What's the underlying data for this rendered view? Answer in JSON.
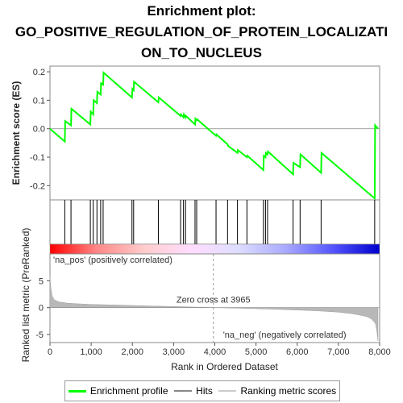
{
  "title_lines": [
    "Enrichment plot:",
    "GO_POSITIVE_REGULATION_OF_PROTEIN_LOCALIZATI",
    "ON_TO_NUCLEUS"
  ],
  "legend": {
    "items": [
      {
        "label": "Enrichment profile",
        "color": "#00ff00"
      },
      {
        "label": "Hits",
        "color": "#000000"
      },
      {
        "label": "Ranking metric scores",
        "color": "#c0c0c0"
      }
    ]
  },
  "chart_data": [
    {
      "type": "line",
      "name": "enrichment-profile",
      "ylabel": "Enrichment score (ES)",
      "ylim": [
        -0.25,
        0.22
      ],
      "yticks": [
        0.2,
        0.1,
        0.0,
        -0.1,
        -0.2
      ],
      "ytick_labels": [
        "0.2",
        "0.1",
        "0.0",
        "-0.1",
        "-0.2"
      ],
      "xlim": [
        0,
        8000
      ],
      "color": "#00ff00",
      "x": [
        0,
        360,
        370,
        510,
        520,
        980,
        990,
        1050,
        1060,
        1140,
        1150,
        1230,
        1240,
        1290,
        1300,
        1990,
        2000,
        2030,
        2040,
        2630,
        2640,
        3170,
        3180,
        3240,
        3250,
        3290,
        3300,
        3520,
        3530,
        3560,
        3570,
        4030,
        4040,
        4310,
        4320,
        4550,
        4560,
        4780,
        4790,
        5180,
        5190,
        5230,
        5240,
        5280,
        5290,
        5900,
        5910,
        6070,
        6080,
        6580,
        6590,
        7880,
        7890,
        7960
      ],
      "y": [
        0.0,
        -0.045,
        0.027,
        0.012,
        0.07,
        0.015,
        0.06,
        0.05,
        0.1,
        0.09,
        0.13,
        0.12,
        0.16,
        0.155,
        0.197,
        0.11,
        0.14,
        0.135,
        0.165,
        0.093,
        0.11,
        0.045,
        0.05,
        0.04,
        0.05,
        0.04,
        0.045,
        0.015,
        0.035,
        0.03,
        0.033,
        -0.025,
        -0.02,
        -0.055,
        -0.06,
        -0.085,
        -0.075,
        -0.1,
        -0.095,
        -0.145,
        -0.095,
        -0.1,
        -0.085,
        -0.09,
        -0.08,
        -0.16,
        -0.12,
        -0.135,
        -0.09,
        -0.155,
        -0.085,
        -0.245,
        0.012,
        0.0
      ]
    },
    {
      "type": "hits",
      "name": "hits",
      "xlim": [
        0,
        8000
      ],
      "positions": [
        360,
        510,
        980,
        1050,
        1140,
        1230,
        1290,
        1990,
        2030,
        2630,
        3170,
        3240,
        3290,
        3520,
        3560,
        4030,
        4310,
        4550,
        4780,
        5180,
        5230,
        5280,
        5900,
        6070,
        6580,
        7880
      ]
    },
    {
      "type": "area",
      "name": "ranked-list-metric",
      "ylabel": "Ranked list metric (PreRanked)",
      "xlabel": "Rank in Ordered Dataset",
      "xlim": [
        0,
        8000
      ],
      "ylim": [
        -6.5,
        10
      ],
      "yticks": [
        5,
        0,
        -5
      ],
      "ytick_labels": [
        "5",
        "0",
        "-5"
      ],
      "xticks": [
        0,
        1000,
        2000,
        3000,
        4000,
        5000,
        6000,
        7000,
        8000
      ],
      "xtick_labels": [
        "0",
        "1,000",
        "2,000",
        "3,000",
        "4,000",
        "5,000",
        "6,000",
        "7,000",
        "8,000"
      ],
      "x": [
        0,
        20,
        50,
        100,
        200,
        400,
        600,
        1000,
        1500,
        2000,
        2500,
        3000,
        3500,
        3965,
        4500,
        5000,
        5500,
        6000,
        6500,
        7000,
        7300,
        7500,
        7700,
        7800,
        7850,
        7900,
        7930,
        7960
      ],
      "y": [
        5.8,
        3.8,
        2.2,
        1.5,
        1.1,
        0.85,
        0.75,
        0.6,
        0.5,
        0.4,
        0.3,
        0.2,
        0.1,
        0.0,
        -0.1,
        -0.2,
        -0.3,
        -0.45,
        -0.6,
        -0.85,
        -1.1,
        -1.35,
        -1.7,
        -2.1,
        -2.5,
        -3.0,
        -4.2,
        -6.2
      ],
      "zero_cross_label": "Zero cross at 3965",
      "zero_cross_rank": 3965,
      "pos_label": "'na_pos' (positively correlated)",
      "neg_label": "'na_neg' (negatively correlated)",
      "pos_label_color": "#ff0000",
      "neg_label_color": "#0000ff",
      "heatmap_gradient": [
        "#ff0000",
        "#ff8888",
        "#ffcccc",
        "#ffddff",
        "#ddddff",
        "#aaaaff",
        "#5555ff",
        "#0000cc"
      ]
    }
  ]
}
